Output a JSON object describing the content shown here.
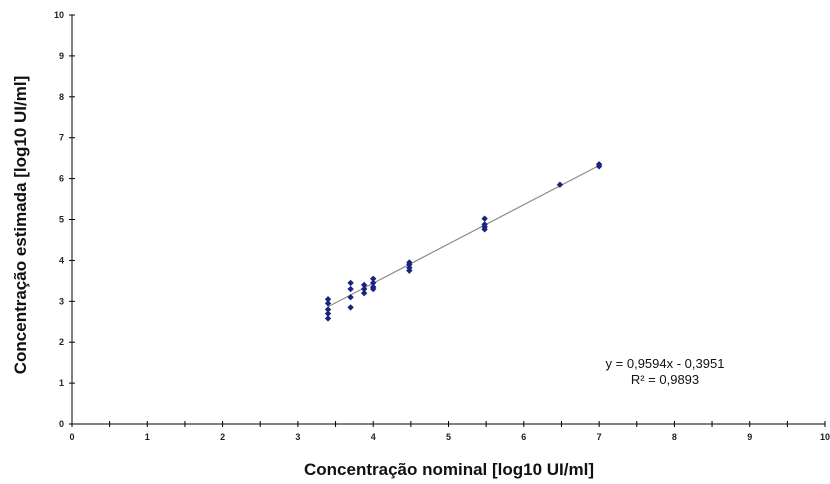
{
  "chart_data": {
    "type": "scatter",
    "title": "",
    "xlabel": "Concentração nominal [log10 UI/ml]",
    "ylabel": "Concentração estimada [log10 UI/ml]",
    "xlim": [
      0,
      10
    ],
    "ylim": [
      0,
      10
    ],
    "x_ticks": [
      0,
      1,
      2,
      3,
      4,
      5,
      6,
      7,
      8,
      9,
      10
    ],
    "y_ticks": [
      0,
      1,
      2,
      3,
      4,
      5,
      6,
      7,
      8,
      9,
      10
    ],
    "grid": false,
    "marker_color": "#1a237e",
    "trendline_color": "#8c8c8c",
    "series": [
      {
        "points": [
          {
            "x": 3.4,
            "y": 3.05
          },
          {
            "x": 3.4,
            "y": 2.95
          },
          {
            "x": 3.4,
            "y": 2.8
          },
          {
            "x": 3.4,
            "y": 2.7
          },
          {
            "x": 3.4,
            "y": 2.58
          },
          {
            "x": 3.7,
            "y": 3.45
          },
          {
            "x": 3.7,
            "y": 3.3
          },
          {
            "x": 3.7,
            "y": 3.1
          },
          {
            "x": 3.7,
            "y": 2.85
          },
          {
            "x": 3.88,
            "y": 3.4
          },
          {
            "x": 3.88,
            "y": 3.3
          },
          {
            "x": 3.88,
            "y": 3.2
          },
          {
            "x": 4.0,
            "y": 3.55
          },
          {
            "x": 4.0,
            "y": 3.45
          },
          {
            "x": 4.0,
            "y": 3.35
          },
          {
            "x": 4.0,
            "y": 3.3
          },
          {
            "x": 4.48,
            "y": 3.95
          },
          {
            "x": 4.48,
            "y": 3.9
          },
          {
            "x": 4.48,
            "y": 3.82
          },
          {
            "x": 4.48,
            "y": 3.75
          },
          {
            "x": 5.48,
            "y": 5.02
          },
          {
            "x": 5.48,
            "y": 4.88
          },
          {
            "x": 5.48,
            "y": 4.82
          },
          {
            "x": 5.48,
            "y": 4.76
          },
          {
            "x": 6.48,
            "y": 5.85
          },
          {
            "x": 7.0,
            "y": 6.35
          },
          {
            "x": 7.0,
            "y": 6.3
          }
        ]
      }
    ],
    "trendline": {
      "slope": 0.9594,
      "intercept": -0.3951,
      "x_range": [
        3.4,
        7.0
      ],
      "equation": "y = 0,9594x  - 0,3951",
      "r_squared": "R² = 0,9893"
    }
  }
}
